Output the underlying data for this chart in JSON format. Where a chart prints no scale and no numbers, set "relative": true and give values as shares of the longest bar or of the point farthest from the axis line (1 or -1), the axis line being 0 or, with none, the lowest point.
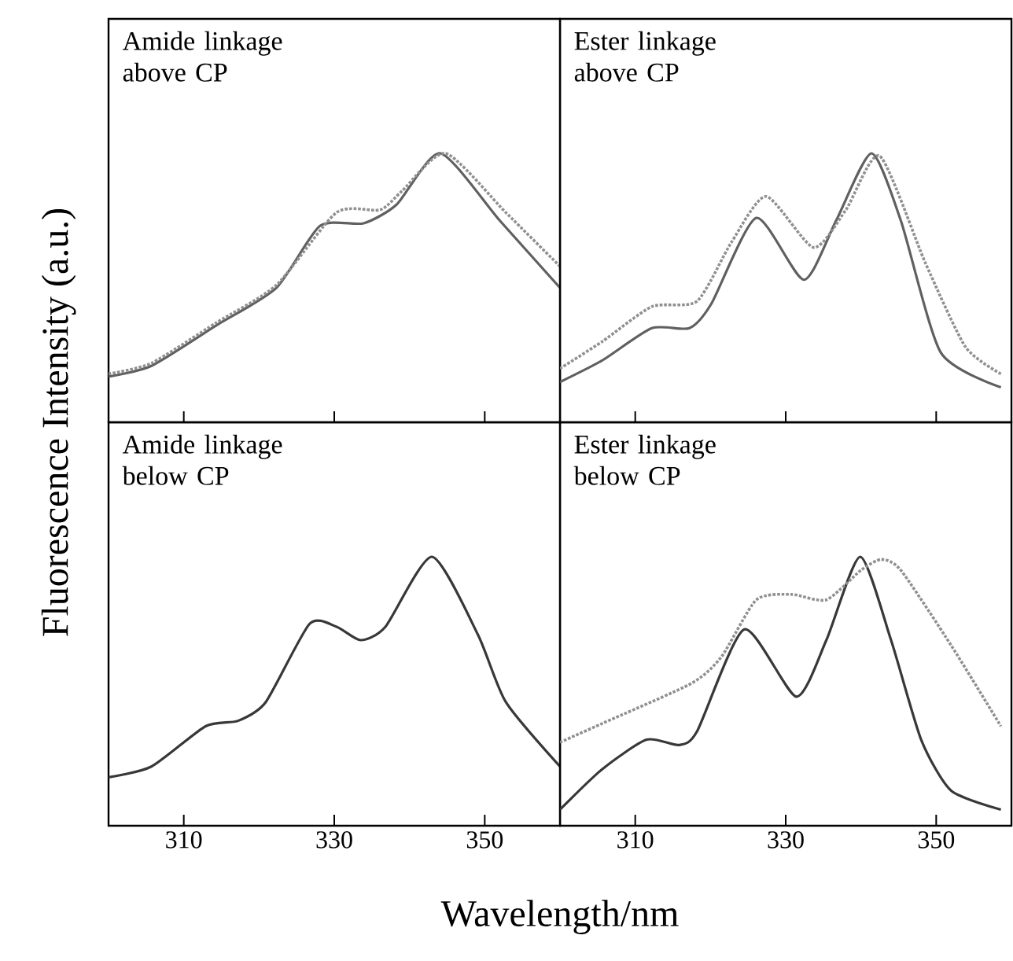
{
  "chart_data": [
    {
      "type": "line",
      "title": "Amide linkage above CP",
      "ylabel": "Fluorescence Intensity (a.u.)",
      "relative": true,
      "xlim": [
        300,
        360
      ],
      "xticks": [
        310,
        330,
        350
      ],
      "tick_labels": false,
      "series": [
        {
          "color": "#606060",
          "line_style": "solid",
          "x": [
            300,
            305.7,
            314.3,
            322.3,
            328.1,
            333.9,
            338.3,
            344.1,
            352.0,
            360
          ],
          "values": [
            0.17,
            0.21,
            0.36,
            0.5,
            0.73,
            0.74,
            0.81,
            1.0,
            0.75,
            0.5
          ]
        },
        {
          "color": "#909090",
          "line_style": "dotted",
          "x": [
            300,
            305.7,
            314.3,
            322.3,
            330.3,
            336.1,
            339.0,
            344.8,
            352.8,
            360
          ],
          "values": [
            0.18,
            0.22,
            0.37,
            0.51,
            0.78,
            0.79,
            0.86,
            1.0,
            0.78,
            0.58
          ]
        }
      ]
    },
    {
      "type": "line",
      "title": "Ester linkage above CP",
      "relative": true,
      "xlim": [
        300,
        360
      ],
      "xticks": [
        310,
        330,
        350
      ],
      "tick_labels": false,
      "series": [
        {
          "color": "#606060",
          "line_style": "solid",
          "x": [
            300,
            305.6,
            312.2,
            317.2,
            320.1,
            326.1,
            332.4,
            336.7,
            341.4,
            345.3,
            350.6,
            358.6
          ],
          "values": [
            0.15,
            0.23,
            0.35,
            0.35,
            0.44,
            0.76,
            0.53,
            0.75,
            1.0,
            0.75,
            0.26,
            0.13
          ]
        },
        {
          "color": "#909090",
          "line_style": "dotted",
          "x": [
            300,
            305.6,
            312.2,
            318.2,
            322.8,
            327.4,
            333.7,
            338.0,
            342.5,
            348.6,
            353.9,
            358.6
          ],
          "values": [
            0.2,
            0.3,
            0.43,
            0.45,
            0.67,
            0.84,
            0.65,
            0.79,
            0.99,
            0.59,
            0.28,
            0.18
          ]
        }
      ]
    },
    {
      "type": "line",
      "title": "Amide linkage below CP",
      "xlabel": "Wavelength/nm",
      "relative": true,
      "xlim": [
        300,
        360
      ],
      "xticks": [
        310,
        330,
        350
      ],
      "tick_labels": "x",
      "series": [
        {
          "color": "#383838",
          "line_style": "solid",
          "x": [
            300,
            305.7,
            312.9,
            317.2,
            320.9,
            326.7,
            330.3,
            333.5,
            336.8,
            343.0,
            349.1,
            352.8,
            360
          ],
          "values": [
            0.18,
            0.22,
            0.37,
            0.39,
            0.46,
            0.75,
            0.74,
            0.69,
            0.74,
            1.0,
            0.71,
            0.46,
            0.22
          ]
        }
      ]
    },
    {
      "type": "line",
      "title": "Ester linkage below CP",
      "relative": true,
      "xlim": [
        300,
        360
      ],
      "xticks": [
        310,
        330,
        350
      ],
      "tick_labels": "x",
      "series": [
        {
          "color": "#383838",
          "line_style": "solid",
          "x": [
            300,
            305.6,
            311.5,
            315.8,
            318.2,
            324.5,
            331.4,
            335.4,
            339.9,
            344.0,
            348.0,
            352.0,
            358.6
          ],
          "values": [
            0.06,
            0.21,
            0.32,
            0.3,
            0.35,
            0.73,
            0.48,
            0.69,
            1.0,
            0.69,
            0.32,
            0.13,
            0.06
          ]
        },
        {
          "color": "#909090",
          "line_style": "dotted",
          "x": [
            300,
            305.6,
            317.5,
            321.5,
            326.1,
            330.8,
            335.4,
            340.0,
            342.7,
            345.3,
            352.0,
            358.6
          ],
          "values": [
            0.31,
            0.38,
            0.53,
            0.63,
            0.84,
            0.86,
            0.84,
            0.95,
            0.99,
            0.95,
            0.67,
            0.37
          ]
        }
      ]
    }
  ]
}
